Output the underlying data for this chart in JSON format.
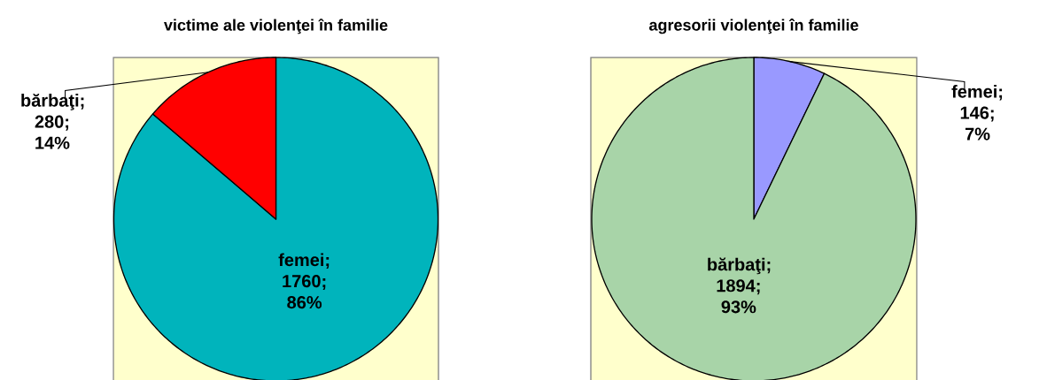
{
  "chart_data": [
    {
      "type": "pie",
      "title": "victime ale violenţei în familie",
      "categories": [
        "femei",
        "bărbaţi"
      ],
      "values": [
        1760,
        280
      ],
      "colors": [
        "#00b4bc",
        "#ff0000"
      ],
      "value_labels": [
        "; 1760; 86%",
        "; 280; 14%"
      ]
    },
    {
      "type": "pie",
      "title": "agresorii violenţei în familie",
      "categories": [
        "femei",
        "bărbaţi"
      ],
      "values": [
        146,
        1894
      ],
      "colors": [
        "#9999ff",
        "#a8d4a8"
      ],
      "value_labels": [
        "; 146; 7%",
        "; 1894; 93%"
      ]
    }
  ]
}
